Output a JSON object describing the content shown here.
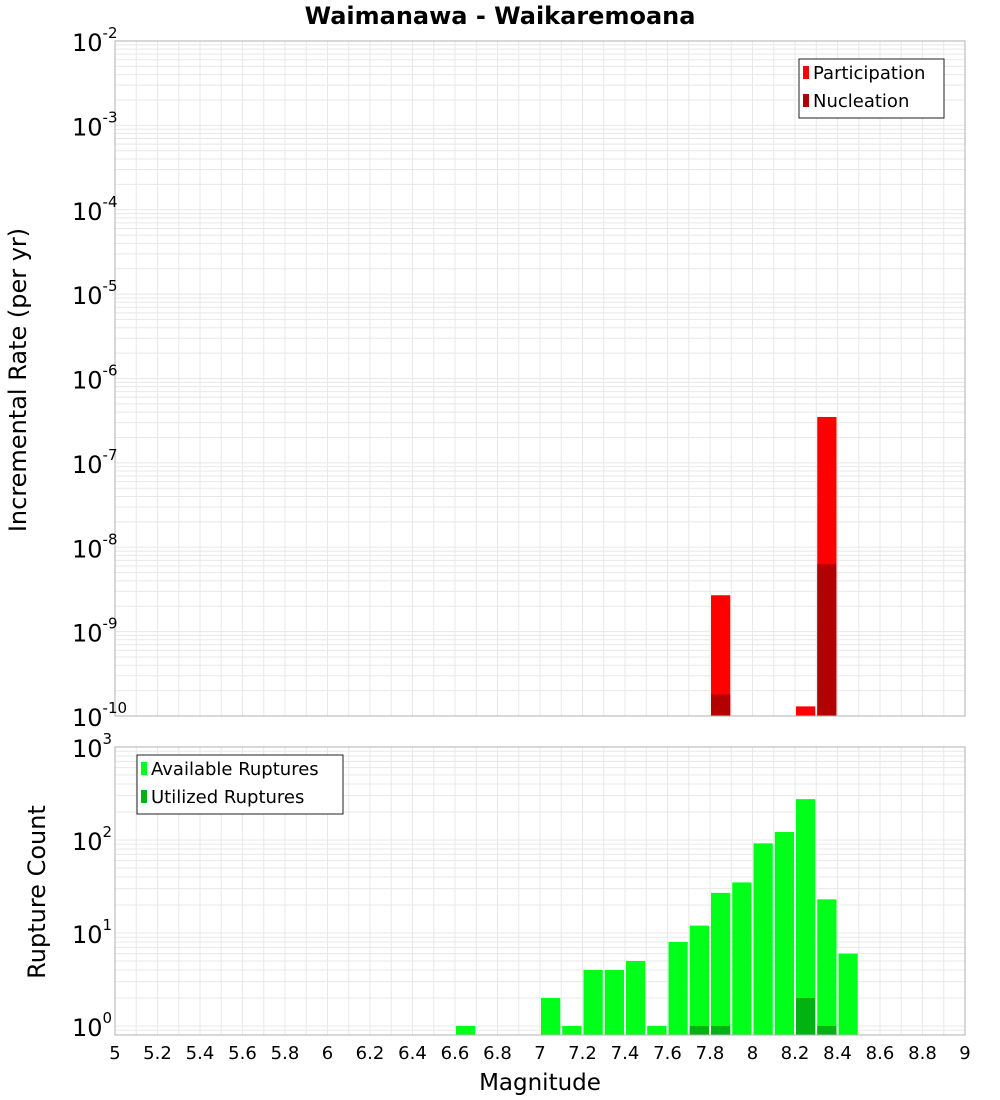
{
  "title": "Waimanawa - Waikaremoana",
  "xlabel": "Magnitude",
  "x_tick_labels": [
    "5",
    "5.2",
    "5.4",
    "5.6",
    "5.8",
    "6",
    "6.2",
    "6.4",
    "6.6",
    "6.8",
    "7",
    "7.2",
    "7.4",
    "7.6",
    "7.8",
    "8",
    "8.2",
    "8.4",
    "8.6",
    "8.8",
    "9"
  ],
  "colors": {
    "participation": "#ff0000",
    "nucleation": "#b30000",
    "available": "#00ff19",
    "utilized": "#00b312",
    "grid": "#e8e8e8",
    "border": "#b0b0b0"
  },
  "chart_data": [
    {
      "type": "bar",
      "ylabel": "Incremental Rate (per yr)",
      "yscale": "log",
      "ylim": [
        1e-10,
        0.01
      ],
      "xlim": [
        5,
        9
      ],
      "grid": true,
      "legend_position": "top-right",
      "y_tick_labels": [
        {
          "base": "10",
          "exp": "-10"
        },
        {
          "base": "10",
          "exp": "-9"
        },
        {
          "base": "10",
          "exp": "-8"
        },
        {
          "base": "10",
          "exp": "-7"
        },
        {
          "base": "10",
          "exp": "-6"
        },
        {
          "base": "10",
          "exp": "-5"
        },
        {
          "base": "10",
          "exp": "-4"
        },
        {
          "base": "10",
          "exp": "-3"
        },
        {
          "base": "10",
          "exp": "-2"
        }
      ],
      "series": [
        {
          "name": "Participation",
          "color": "#ff0000",
          "points": [
            {
              "x": 7.85,
              "y": 2.7e-09
            },
            {
              "x": 8.25,
              "y": 1.3e-10
            },
            {
              "x": 8.35,
              "y": 3.5e-07
            }
          ]
        },
        {
          "name": "Nucleation",
          "color": "#b30000",
          "points": [
            {
              "x": 7.85,
              "y": 1.8e-10
            },
            {
              "x": 8.35,
              "y": 6.3e-09
            }
          ]
        }
      ]
    },
    {
      "type": "bar",
      "ylabel": "Rupture Count",
      "yscale": "log",
      "ylim": [
        0.8,
        1000
      ],
      "xlim": [
        5,
        9
      ],
      "grid": true,
      "legend_position": "top-left",
      "y_tick_labels": [
        {
          "base": "10",
          "exp": "0"
        },
        {
          "base": "10",
          "exp": "1"
        },
        {
          "base": "10",
          "exp": "2"
        },
        {
          "base": "10",
          "exp": "3"
        }
      ],
      "series": [
        {
          "name": "Available Ruptures",
          "color": "#00ff19",
          "points": [
            {
              "x": 6.65,
              "y": 1
            },
            {
              "x": 7.05,
              "y": 2
            },
            {
              "x": 7.15,
              "y": 1
            },
            {
              "x": 7.25,
              "y": 4
            },
            {
              "x": 7.35,
              "y": 4
            },
            {
              "x": 7.45,
              "y": 5
            },
            {
              "x": 7.55,
              "y": 1
            },
            {
              "x": 7.65,
              "y": 8
            },
            {
              "x": 7.75,
              "y": 12
            },
            {
              "x": 7.85,
              "y": 27
            },
            {
              "x": 7.95,
              "y": 35
            },
            {
              "x": 8.05,
              "y": 92
            },
            {
              "x": 8.15,
              "y": 122
            },
            {
              "x": 8.25,
              "y": 275
            },
            {
              "x": 8.35,
              "y": 23
            },
            {
              "x": 8.45,
              "y": 6
            }
          ]
        },
        {
          "name": "Utilized Ruptures",
          "color": "#00b312",
          "points": [
            {
              "x": 7.75,
              "y": 1
            },
            {
              "x": 7.85,
              "y": 1
            },
            {
              "x": 8.25,
              "y": 2
            },
            {
              "x": 8.35,
              "y": 1
            }
          ]
        }
      ]
    }
  ]
}
